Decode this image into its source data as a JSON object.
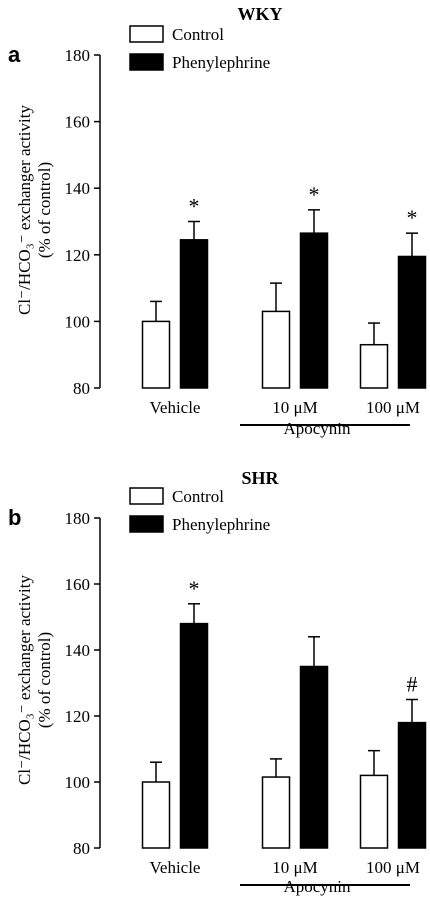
{
  "chart_data": [
    {
      "type": "bar",
      "panel_letter": "a",
      "title": "WKY",
      "ylabel_line1": "Cl⁻/HCO₃⁻ exchanger activity",
      "ylabel_line2": "(% of control)",
      "ylim": [
        80,
        180
      ],
      "yticks": [
        80,
        100,
        120,
        140,
        160,
        180
      ],
      "categories": [
        "Vehicle",
        "10  μM",
        "100  μM"
      ],
      "group_label": "Apocynin",
      "legend": {
        "position": "top-left",
        "entries": [
          "Control",
          "Phenylephrine"
        ]
      },
      "series": [
        {
          "name": "Control",
          "color": "#ffffff",
          "values": [
            100,
            103,
            93
          ],
          "errors": [
            6,
            8.5,
            6.5
          ]
        },
        {
          "name": "Phenylephrine",
          "color": "#000000",
          "values": [
            124.5,
            126.5,
            119.5
          ],
          "errors": [
            5.5,
            7,
            7
          ]
        }
      ],
      "annotations": [
        "*",
        "*",
        "*"
      ]
    },
    {
      "type": "bar",
      "panel_letter": "b",
      "title": "SHR",
      "ylabel_line1": "Cl⁻/HCO₃⁻ exchanger activity",
      "ylabel_line2": "(% of control)",
      "ylim": [
        80,
        180
      ],
      "yticks": [
        80,
        100,
        120,
        140,
        160,
        180
      ],
      "categories": [
        "Vehicle",
        "10  μM",
        "100  μM"
      ],
      "group_label": "Apocynin",
      "legend": {
        "position": "top-left",
        "entries": [
          "Control",
          "Phenylephrine"
        ]
      },
      "series": [
        {
          "name": "Control",
          "color": "#ffffff",
          "values": [
            100,
            101.5,
            102
          ],
          "errors": [
            6,
            5.5,
            7.5
          ]
        },
        {
          "name": "Phenylephrine",
          "color": "#000000",
          "values": [
            148,
            135,
            118
          ],
          "errors": [
            6,
            9,
            7
          ]
        }
      ],
      "annotations": [
        "*",
        "",
        "#"
      ]
    }
  ]
}
